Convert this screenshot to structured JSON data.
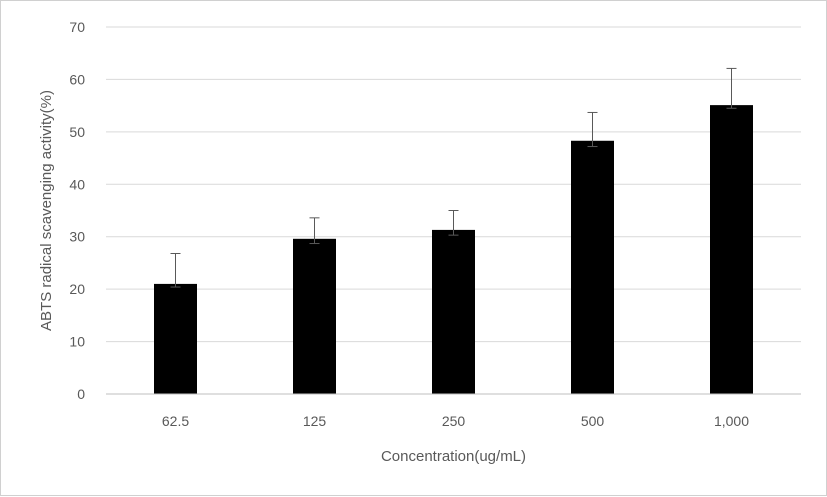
{
  "chart_data": {
    "type": "bar",
    "title": "",
    "xlabel": "Concentration(ug/mL)",
    "ylabel": "ABTS radical scavenging activity(%)",
    "categories": [
      "62.5",
      "125",
      "250",
      "500",
      "1,000"
    ],
    "values": [
      21.0,
      29.6,
      31.3,
      48.3,
      55.1
    ],
    "error_upper": [
      5.8,
      4.0,
      3.7,
      5.4,
      7.0
    ],
    "error_lower": [
      0.6,
      0.9,
      1.0,
      1.1,
      0.6
    ],
    "ylim": [
      0,
      70
    ],
    "yticks": [
      "0",
      "10",
      "20",
      "30",
      "40",
      "50",
      "60",
      "70"
    ],
    "grid": true,
    "legend": "none",
    "colors": {
      "bar": "#000000",
      "grid": "#d9d9d9",
      "axis": "#bfbfbf",
      "text": "#595959",
      "error": "#595959"
    }
  }
}
